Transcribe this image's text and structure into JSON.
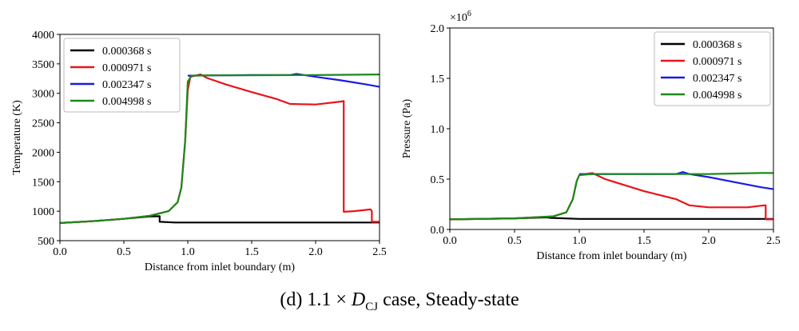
{
  "caption": {
    "prefix": "(d) 1.1 × ",
    "d_symbol": "D",
    "d_subscript": "CJ",
    "suffix": " case, Steady-state"
  },
  "colors": {
    "0.000368 s": "#000000",
    "0.000971 s": "#e8141a",
    "0.002347 s": "#1a1ae6",
    "0.004998 s": "#1a8a1a"
  },
  "chart_data": [
    {
      "type": "line",
      "xlabel": "Distance from inlet boundary (m)",
      "ylabel": "Temperature (K)",
      "xlim": [
        0,
        2.5
      ],
      "ylim": [
        500,
        4000
      ],
      "xticks": [
        "0.0",
        "0.5",
        "1.0",
        "1.5",
        "2.0",
        "2.5"
      ],
      "yticks": [
        "500",
        "1000",
        "1500",
        "2000",
        "2500",
        "3000",
        "3500",
        "4000"
      ],
      "grid": false,
      "legend_position": "top-left",
      "series": [
        {
          "name": "0.000368 s",
          "x": [
            0,
            0.25,
            0.5,
            0.7,
            0.78,
            0.78,
            0.9,
            1.5,
            2.0,
            2.5
          ],
          "y": [
            800,
            830,
            870,
            910,
            915,
            820,
            808,
            808,
            808,
            808
          ]
        },
        {
          "name": "0.000971 s",
          "x": [
            0,
            0.25,
            0.5,
            0.7,
            0.85,
            0.92,
            0.95,
            0.98,
            1.0,
            1.02,
            1.1,
            1.15,
            1.3,
            1.5,
            1.7,
            1.8,
            2.0,
            2.2,
            2.22,
            2.22,
            2.3,
            2.43,
            2.44,
            2.44,
            2.5
          ],
          "y": [
            800,
            830,
            870,
            920,
            1000,
            1150,
            1400,
            2200,
            3050,
            3280,
            3320,
            3260,
            3150,
            3020,
            2900,
            2820,
            2810,
            2860,
            2870,
            990,
            1000,
            1030,
            1000,
            820,
            820
          ]
        },
        {
          "name": "0.002347 s",
          "x": [
            1.0,
            1.5,
            1.8,
            1.85,
            2.0,
            2.2,
            2.4,
            2.5
          ],
          "y": [
            3300,
            3310,
            3310,
            3330,
            3280,
            3220,
            3150,
            3110
          ]
        },
        {
          "name": "0.004998 s",
          "x": [
            0,
            0.25,
            0.5,
            0.7,
            0.85,
            0.92,
            0.95,
            0.98,
            1.0,
            1.03,
            1.2,
            1.5,
            2.0,
            2.5
          ],
          "y": [
            800,
            830,
            870,
            920,
            1000,
            1150,
            1400,
            2200,
            3200,
            3300,
            3305,
            3305,
            3310,
            3320
          ]
        }
      ]
    },
    {
      "type": "line",
      "xlabel": "Distance from inlet boundary (m)",
      "ylabel": "Pressure (Pa)",
      "multiplier_label": "×10",
      "multiplier_exponent": "6",
      "xlim": [
        0,
        2.5
      ],
      "ylim": [
        0,
        2.0
      ],
      "xticks": [
        "0.0",
        "0.5",
        "1.0",
        "1.5",
        "2.0",
        "2.5"
      ],
      "yticks": [
        "0.0",
        "0.5",
        "1.0",
        "1.5",
        "2.0"
      ],
      "grid": false,
      "legend_position": "top-right",
      "series": [
        {
          "name": "0.000368 s",
          "x": [
            0,
            0.5,
            0.75,
            0.78,
            1.0,
            2.5
          ],
          "y": [
            0.1,
            0.11,
            0.12,
            0.115,
            0.105,
            0.105
          ]
        },
        {
          "name": "0.000971 s",
          "x": [
            0,
            0.5,
            0.8,
            0.9,
            0.95,
            0.98,
            1.0,
            1.1,
            1.2,
            1.5,
            1.75,
            1.85,
            2.0,
            2.3,
            2.43,
            2.44,
            2.44,
            2.5
          ],
          "y": [
            0.1,
            0.11,
            0.13,
            0.17,
            0.3,
            0.48,
            0.54,
            0.56,
            0.5,
            0.38,
            0.3,
            0.24,
            0.22,
            0.22,
            0.24,
            0.24,
            0.1,
            0.1
          ]
        },
        {
          "name": "0.002347 s",
          "x": [
            1.0,
            1.5,
            1.75,
            1.8,
            1.85,
            2.0,
            2.2,
            2.4,
            2.5
          ],
          "y": [
            0.55,
            0.55,
            0.55,
            0.57,
            0.55,
            0.52,
            0.47,
            0.42,
            0.4
          ]
        },
        {
          "name": "0.004998 s",
          "x": [
            0,
            0.5,
            0.8,
            0.9,
            0.95,
            0.98,
            1.0,
            1.1,
            1.5,
            2.0,
            2.4,
            2.5
          ],
          "y": [
            0.1,
            0.11,
            0.13,
            0.17,
            0.3,
            0.48,
            0.54,
            0.55,
            0.55,
            0.55,
            0.56,
            0.56
          ]
        }
      ]
    }
  ]
}
